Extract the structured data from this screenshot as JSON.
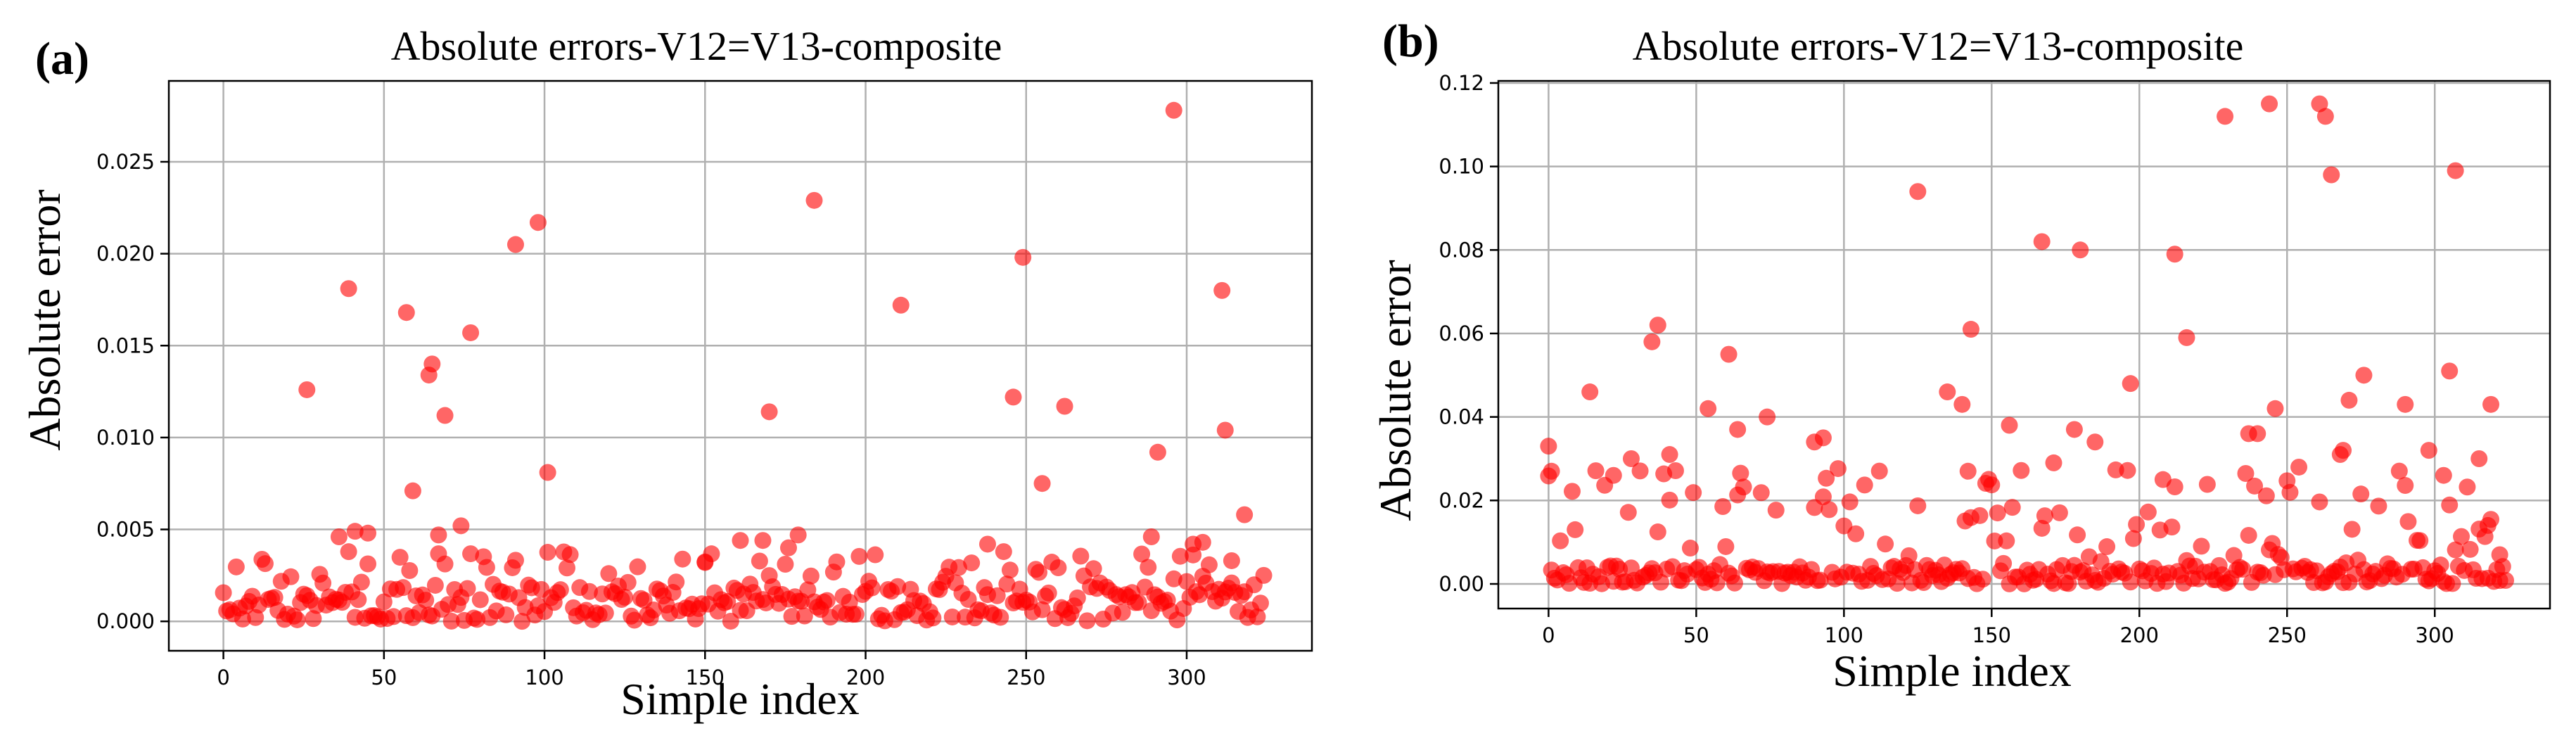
{
  "colors": {
    "point": "#ff0000",
    "grid": "#b0b0b0",
    "axis": "#000000"
  },
  "chart_data": [
    {
      "type": "scatter",
      "panel_label": "(a)",
      "title": "Absolute errors-V12=V13-composite",
      "xlabel": "Simple index",
      "ylabel": "Absolute error",
      "xlim": [
        -17,
        339
      ],
      "ylim": [
        -0.0016,
        0.0294
      ],
      "xticks": [
        0,
        50,
        100,
        150,
        200,
        250,
        300
      ],
      "xtick_labels": [
        "0",
        "50",
        "100",
        "150",
        "200",
        "250",
        "300"
      ],
      "yticks": [
        0,
        0.005,
        0.01,
        0.015,
        0.02,
        0.025
      ],
      "ytick_labels": [
        "0.000",
        "0.005",
        "0.010",
        "0.015",
        "0.020",
        "0.025"
      ],
      "grid": true,
      "outliers": [
        [
          26,
          0.0126
        ],
        [
          36,
          0.0046
        ],
        [
          39,
          0.0181
        ],
        [
          41,
          0.0049
        ],
        [
          45,
          0.0048
        ],
        [
          57,
          0.0168
        ],
        [
          59,
          0.0071
        ],
        [
          64,
          0.0134
        ],
        [
          65,
          0.014
        ],
        [
          67,
          0.0047
        ],
        [
          69,
          0.0112
        ],
        [
          74,
          0.0052
        ],
        [
          77,
          0.0157
        ],
        [
          91,
          0.0205
        ],
        [
          98,
          0.0217
        ],
        [
          101,
          0.0081
        ],
        [
          150,
          0.0032
        ],
        [
          161,
          0.0044
        ],
        [
          168,
          0.0044
        ],
        [
          170,
          0.0114
        ],
        [
          176,
          0.004
        ],
        [
          179,
          0.0047
        ],
        [
          184,
          0.0229
        ],
        [
          211,
          0.0172
        ],
        [
          238,
          0.0042
        ],
        [
          246,
          0.0122
        ],
        [
          249,
          0.0198
        ],
        [
          255,
          0.0075
        ],
        [
          262,
          0.0117
        ],
        [
          289,
          0.0046
        ],
        [
          291,
          0.0092
        ],
        [
          296,
          0.0278
        ],
        [
          302,
          0.0042
        ],
        [
          305,
          0.0043
        ],
        [
          311,
          0.018
        ],
        [
          312,
          0.0104
        ],
        [
          314,
          0.0033
        ],
        [
          318,
          0.0058
        ]
      ],
      "cluster": {
        "count": 325,
        "seed": 17,
        "base_max": 0.0019,
        "tail_max": 0.0038,
        "tail_fraction": 0.22
      }
    },
    {
      "type": "scatter",
      "panel_label": "(b)",
      "title": "Absolute errors-V12=V13-composite",
      "xlabel": "Simple index",
      "ylabel": "Absolute error",
      "xlim": [
        -17,
        339
      ],
      "ylim": [
        -0.0059,
        0.1205
      ],
      "xticks": [
        0,
        50,
        100,
        150,
        200,
        250,
        300
      ],
      "xtick_labels": [
        "0",
        "50",
        "100",
        "150",
        "200",
        "250",
        "300"
      ],
      "yticks": [
        0,
        0.02,
        0.04,
        0.06,
        0.08,
        0.1,
        0.12
      ],
      "ytick_labels": [
        "0.00",
        "0.02",
        "0.04",
        "0.06",
        "0.08",
        "0.10",
        "0.12"
      ],
      "grid": true,
      "outliers": [
        [
          0,
          0.033
        ],
        [
          1,
          0.027
        ],
        [
          14,
          0.046
        ],
        [
          35,
          0.058
        ],
        [
          37,
          0.062
        ],
        [
          54,
          0.042
        ],
        [
          61,
          0.055
        ],
        [
          125,
          0.094
        ],
        [
          143,
          0.061
        ],
        [
          167,
          0.082
        ],
        [
          180,
          0.08
        ],
        [
          197,
          0.048
        ],
        [
          212,
          0.079
        ],
        [
          216,
          0.059
        ],
        [
          229,
          0.112
        ],
        [
          237,
          0.036
        ],
        [
          240,
          0.036
        ],
        [
          244,
          0.115
        ],
        [
          246,
          0.042
        ],
        [
          261,
          0.115
        ],
        [
          263,
          0.112
        ],
        [
          265,
          0.098
        ],
        [
          268,
          0.031
        ],
        [
          269,
          0.032
        ],
        [
          271,
          0.044
        ],
        [
          276,
          0.05
        ],
        [
          290,
          0.043
        ],
        [
          298,
          0.032
        ],
        [
          303,
          0.026
        ],
        [
          305,
          0.051
        ],
        [
          307,
          0.099
        ],
        [
          315,
          0.03
        ],
        [
          319,
          0.043
        ],
        [
          322,
          0.007
        ],
        [
          318,
          0.014
        ],
        [
          135,
          0.046
        ],
        [
          140,
          0.043
        ],
        [
          142,
          0.027
        ],
        [
          93,
          0.035
        ],
        [
          90,
          0.034
        ],
        [
          74,
          0.04
        ],
        [
          64,
          0.037
        ],
        [
          28,
          0.03
        ],
        [
          22,
          0.026
        ],
        [
          41,
          0.031
        ],
        [
          178,
          0.037
        ],
        [
          185,
          0.034
        ],
        [
          156,
          0.038
        ],
        [
          171,
          0.029
        ],
        [
          208,
          0.025
        ]
      ],
      "cluster": {
        "count": 325,
        "seed": 29,
        "base_max": 0.0045,
        "tail_max": 0.028,
        "tail_fraction": 0.32
      }
    }
  ]
}
